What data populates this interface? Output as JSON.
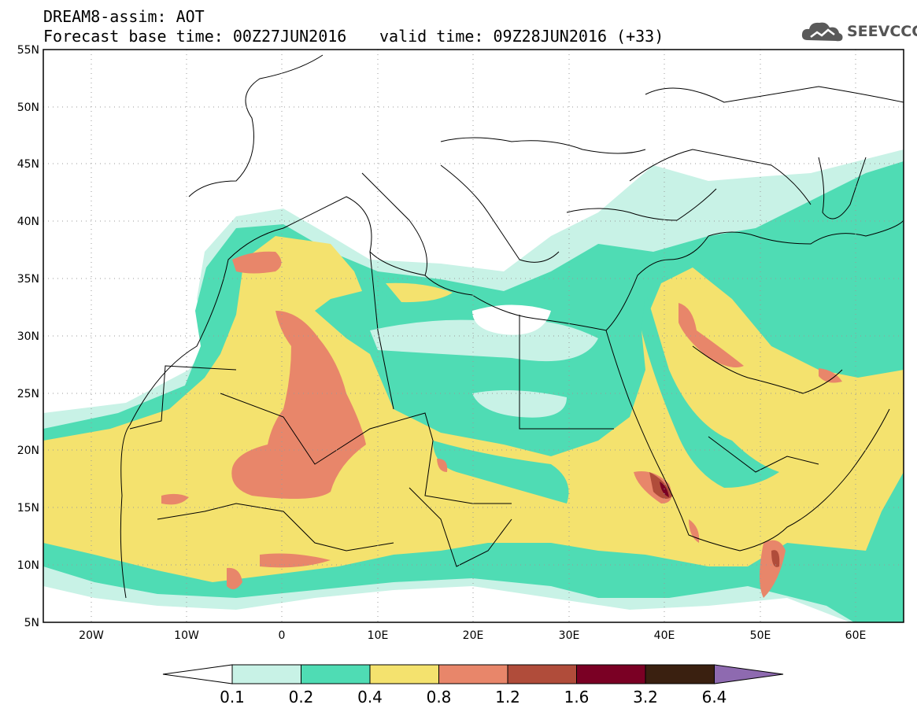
{
  "header": {
    "model_line": "DREAM8-assim: AOT",
    "base_line": "Forecast base time: 00Z27JUN2016",
    "valid_line": "valid time: 09Z28JUN2016 (+33)"
  },
  "logo": {
    "text": "SEEVCCC",
    "icon": "cloud-icon"
  },
  "map": {
    "lat_labels": [
      "55N",
      "50N",
      "45N",
      "40N",
      "35N",
      "30N",
      "25N",
      "20N",
      "15N",
      "10N",
      "5N"
    ],
    "lon_labels": [
      "20W",
      "10W",
      "0",
      "10E",
      "20E",
      "30E",
      "40E",
      "50E",
      "60E"
    ],
    "lat_range": [
      5,
      55
    ],
    "lon_range": [
      -25,
      65
    ],
    "grid": "dotted"
  },
  "colorbar": {
    "ticks": [
      "0.1",
      "0.2",
      "0.4",
      "0.8",
      "1.2",
      "1.6",
      "3.2",
      "6.4"
    ],
    "colors": [
      "#ffffff",
      "#c8f2e6",
      "#4fdcb4",
      "#f4e26e",
      "#e8866a",
      "#b04c3a",
      "#7a0024",
      "#3a2010",
      "#8e6ab0"
    ]
  }
}
